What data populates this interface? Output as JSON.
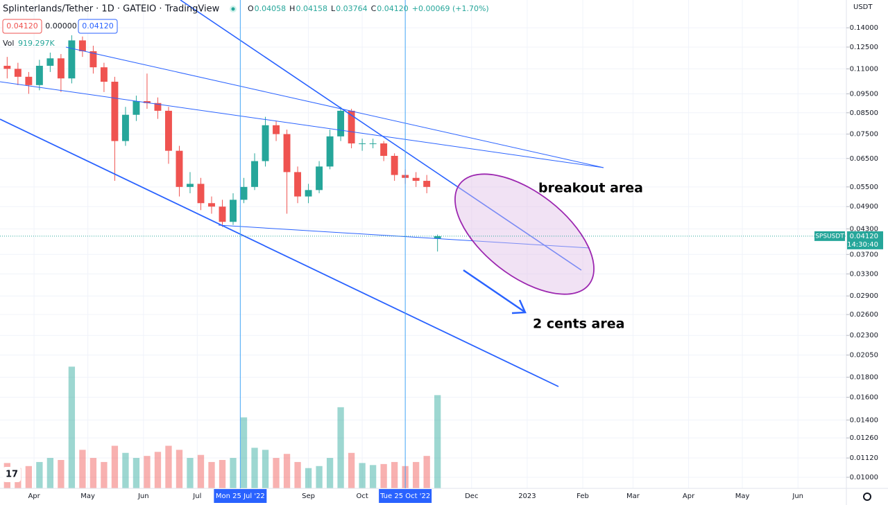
{
  "chart_data": {
    "type": "candlestick",
    "title": "Splinterlands/Tether · 1D · GATEIO · TradingView",
    "legend_labels": [
      "O",
      "H",
      "L",
      "C"
    ],
    "legend_values": [
      "0.04058",
      "0.04158",
      "0.03764",
      "0.04120"
    ],
    "change": "+0.00069 (+1.70%)",
    "bid": "0.04120",
    "spread": "0.00000",
    "ask": "0.04120",
    "volume_name": "Vol",
    "volume_label": "919.297K",
    "currency": "USDT",
    "symbol": "SPSUSDT",
    "last_price": {
      "value": 0.0412,
      "label": "0.04120"
    },
    "countdown": "14:30:40",
    "annotations": [
      "breakout area",
      "2 cents area"
    ],
    "up_color": "#26a69a",
    "down_color": "#ef5350",
    "log_scale": true,
    "grid": true,
    "x": [
      "2022-03-14",
      "2022-03-20",
      "2022-03-26",
      "2022-04-01",
      "2022-04-07",
      "2022-04-13",
      "2022-04-19",
      "2022-04-25",
      "2022-05-01",
      "2022-05-07",
      "2022-05-13",
      "2022-05-19",
      "2022-05-25",
      "2022-05-31",
      "2022-06-06",
      "2022-06-12",
      "2022-06-18",
      "2022-06-24",
      "2022-06-30",
      "2022-07-06",
      "2022-07-12",
      "2022-07-18",
      "2022-07-24",
      "2022-07-30",
      "2022-08-05",
      "2022-08-11",
      "2022-08-17",
      "2022-08-23",
      "2022-08-29",
      "2022-09-04",
      "2022-09-10",
      "2022-09-16",
      "2022-09-22",
      "2022-09-28",
      "2022-10-04",
      "2022-10-10",
      "2022-10-16",
      "2022-10-22",
      "2022-10-28",
      "2022-11-03",
      "2022-11-09"
    ],
    "open": [
      0.112,
      0.11,
      0.105,
      0.1,
      0.112,
      0.117,
      0.104,
      0.13,
      0.122,
      0.111,
      0.102,
      0.072,
      0.084,
      0.091,
      0.09,
      0.086,
      0.068,
      0.055,
      0.056,
      0.05,
      0.049,
      0.0448,
      0.051,
      0.055,
      0.064,
      0.079,
      0.075,
      0.06,
      0.052,
      0.054,
      0.062,
      0.074,
      0.086,
      0.071,
      0.071,
      0.071,
      0.066,
      0.059,
      0.058,
      0.057,
      0.04058
    ],
    "high": [
      0.118,
      0.114,
      0.108,
      0.116,
      0.121,
      0.12,
      0.134,
      0.133,
      0.126,
      0.114,
      0.105,
      0.088,
      0.094,
      0.107,
      0.093,
      0.088,
      0.07,
      0.06,
      0.058,
      0.052,
      0.051,
      0.053,
      0.058,
      0.067,
      0.083,
      0.081,
      0.077,
      0.062,
      0.056,
      0.064,
      0.077,
      0.088,
      0.087,
      0.073,
      0.073,
      0.072,
      0.067,
      0.061,
      0.06,
      0.059,
      0.04158
    ],
    "low": [
      0.104,
      0.1,
      0.095,
      0.097,
      0.108,
      0.096,
      0.101,
      0.118,
      0.107,
      0.096,
      0.057,
      0.07,
      0.081,
      0.087,
      0.082,
      0.063,
      0.052,
      0.053,
      0.048,
      0.047,
      0.0435,
      0.044,
      0.05,
      0.054,
      0.062,
      0.072,
      0.047,
      0.05,
      0.05,
      0.053,
      0.061,
      0.072,
      0.069,
      0.068,
      0.069,
      0.064,
      0.057,
      0.056,
      0.055,
      0.053,
      0.03764
    ],
    "close": [
      0.11,
      0.105,
      0.1,
      0.112,
      0.117,
      0.104,
      0.13,
      0.122,
      0.111,
      0.102,
      0.072,
      0.084,
      0.091,
      0.09,
      0.086,
      0.068,
      0.055,
      0.056,
      0.05,
      0.049,
      0.0448,
      0.051,
      0.055,
      0.064,
      0.079,
      0.075,
      0.06,
      0.052,
      0.054,
      0.062,
      0.074,
      0.086,
      0.071,
      0.071,
      0.071,
      0.066,
      0.059,
      0.058,
      0.057,
      0.055,
      0.0412
    ],
    "volume": [
      250000,
      200000,
      220000,
      260000,
      300000,
      280000,
      1200000,
      380000,
      300000,
      260000,
      420000,
      350000,
      300000,
      320000,
      360000,
      420000,
      380000,
      300000,
      330000,
      260000,
      280000,
      300000,
      700000,
      400000,
      380000,
      300000,
      340000,
      260000,
      200000,
      220000,
      300000,
      800000,
      350000,
      250000,
      230000,
      240000,
      260000,
      220000,
      260000,
      320000,
      919297
    ],
    "vlim": [
      0,
      1400000
    ],
    "xlim": [
      "2022-03-13",
      "2023-06-28"
    ],
    "xticks": [
      {
        "value": "2022-04-01",
        "label": "Apr"
      },
      {
        "value": "2022-05-01",
        "label": "May"
      },
      {
        "value": "2022-06-01",
        "label": "Jun"
      },
      {
        "value": "2022-07-01",
        "label": "Jul"
      },
      {
        "value": "2022-09-01",
        "label": "Sep"
      },
      {
        "value": "2022-10-01",
        "label": "Oct"
      },
      {
        "value": "2022-12-01",
        "label": "Dec"
      },
      {
        "value": "2023-01-01",
        "label": "2023"
      },
      {
        "value": "2023-02-01",
        "label": "Feb"
      },
      {
        "value": "2023-03-01",
        "label": "Mar"
      },
      {
        "value": "2023-04-01",
        "label": "Apr"
      },
      {
        "value": "2023-05-01",
        "label": "May"
      },
      {
        "value": "2023-06-01",
        "label": "Jun"
      }
    ],
    "markers": [
      {
        "value": "2022-07-25",
        "label": "Mon 25 Jul '22"
      },
      {
        "value": "2022-10-25",
        "label": "Tue 25 Oct '22"
      }
    ],
    "ylim": [
      0.00937,
      0.1648
    ],
    "yticks": [
      {
        "value": 0.14,
        "label": "0.14000"
      },
      {
        "value": 0.125,
        "label": "0.12500"
      },
      {
        "value": 0.11,
        "label": "0.11000"
      },
      {
        "value": 0.095,
        "label": "0.09500"
      },
      {
        "value": 0.085,
        "label": "0.08500"
      },
      {
        "value": 0.075,
        "label": "0.07500"
      },
      {
        "value": 0.065,
        "label": "0.06500"
      },
      {
        "value": 0.055,
        "label": "0.05500"
      },
      {
        "value": 0.049,
        "label": "0.04900"
      },
      {
        "value": 0.043,
        "label": "0.04300"
      },
      {
        "value": 0.037,
        "label": "0.03700"
      },
      {
        "value": 0.033,
        "label": "0.03300"
      },
      {
        "value": 0.029,
        "label": "0.02900"
      },
      {
        "value": 0.026,
        "label": "0.02600"
      },
      {
        "value": 0.023,
        "label": "0.02300"
      },
      {
        "value": 0.0205,
        "label": "0.02050"
      },
      {
        "value": 0.018,
        "label": "0.01800"
      },
      {
        "value": 0.016,
        "label": "0.01600"
      },
      {
        "value": 0.014,
        "label": "0.01400"
      },
      {
        "value": 0.0126,
        "label": "0.01260"
      },
      {
        "value": 0.0112,
        "label": "0.01120"
      },
      {
        "value": 0.01,
        "label": "0.01000"
      }
    ]
  }
}
